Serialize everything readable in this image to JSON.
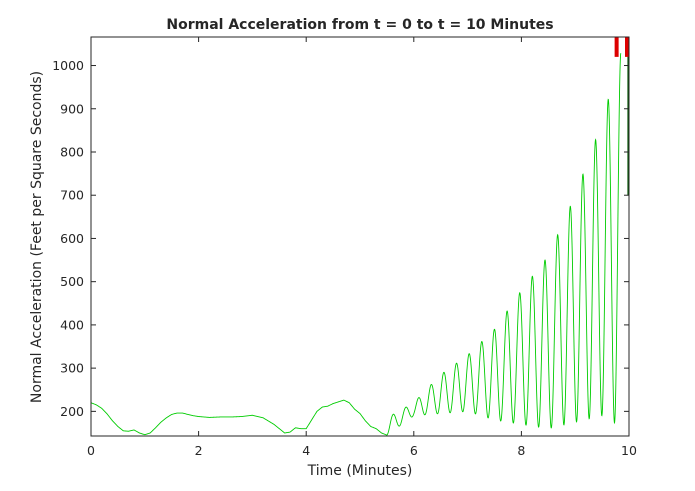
{
  "chart_data": {
    "type": "line",
    "title": "Normal Acceleration from t = 0 to t = 10 Minutes",
    "xlabel": "Time (Minutes)",
    "ylabel": "Normal Acceleration (Feet per Square Seconds)",
    "xlim": [
      0,
      10
    ],
    "ylim": [
      143,
      1066
    ],
    "grid": false,
    "legend": "none",
    "x_ticks": [
      0,
      2,
      4,
      6,
      8,
      10
    ],
    "y_ticks": [
      200,
      300,
      400,
      500,
      600,
      700,
      800,
      900,
      1000
    ],
    "colors": {
      "series": "#00cc00",
      "marker": "#dd0000",
      "axes": "#262626"
    },
    "series": [
      {
        "x": [
          0,
          0.1,
          0.2,
          0.3,
          0.4,
          0.5,
          0.6,
          0.7,
          0.8,
          0.9,
          1.0,
          1.1,
          1.2,
          1.3,
          1.4,
          1.5,
          1.6,
          1.7,
          1.8,
          1.9,
          2.0,
          2.2,
          2.4,
          2.6,
          2.8,
          3.0,
          3.2,
          3.4,
          3.5,
          3.6,
          3.7,
          3.8,
          3.9,
          4.0,
          4.1,
          4.2,
          4.3,
          4.4,
          4.5,
          4.6,
          4.7,
          4.8,
          4.9,
          5.0,
          5.1,
          5.2,
          5.3,
          5.4,
          5.5
        ],
        "y": [
          220,
          215,
          207,
          194,
          178,
          165,
          155,
          154,
          157,
          150,
          146,
          150,
          162,
          175,
          185,
          193,
          196,
          196,
          193,
          190,
          188,
          186,
          187,
          187,
          188,
          191,
          185,
          170,
          160,
          150,
          152,
          162,
          160,
          160,
          180,
          200,
          210,
          212,
          218,
          222,
          226,
          220,
          205,
          195,
          178,
          165,
          160,
          150,
          145
        ]
      }
    ],
    "oscillation_envelope": {
      "x": [
        5.5,
        6.0,
        6.5,
        7.0,
        7.5,
        8.0,
        8.5,
        9.0,
        9.5,
        9.85
      ],
      "max": [
        185,
        220,
        285,
        330,
        390,
        480,
        560,
        700,
        870,
        1030
      ],
      "min": [
        145,
        190,
        195,
        200,
        180,
        170,
        160,
        175,
        190,
        165
      ],
      "period": 0.235
    },
    "markers": [
      {
        "x": 9.77,
        "y_range": [
          1020,
          1066
        ]
      },
      {
        "x": 10.0,
        "y_range": [
          1020,
          1066
        ]
      }
    ]
  }
}
